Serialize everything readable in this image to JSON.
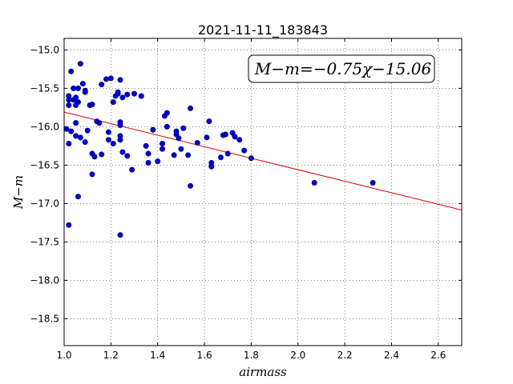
{
  "chart_data": {
    "type": "scatter",
    "title": "2021-11-11_183843",
    "xlabel": "airmass",
    "ylabel": "M−m",
    "xlim": [
      1.0,
      2.7
    ],
    "ylim": [
      -14.85,
      -18.85
    ],
    "y_inverted": true,
    "grid": true,
    "x_ticks": [
      "1.0",
      "1.2",
      "1.4",
      "1.6",
      "1.8",
      "2.0",
      "2.2",
      "2.4",
      "2.6"
    ],
    "y_ticks": [
      "−15.0",
      "−15.5",
      "−16.0",
      "−16.5",
      "−17.0",
      "−17.5",
      "−18.0",
      "−18.5"
    ],
    "annotation": "M−m=−0.75χ−15.06",
    "annotation_position": "top-right",
    "colors": {
      "points": "#0000cc",
      "fit_line": "#dd0000"
    },
    "fit": {
      "slope": -0.75,
      "intercept": -15.06,
      "x_range": [
        1.0,
        2.7
      ]
    },
    "points": [
      [
        1.01,
        -16.03
      ],
      [
        1.02,
        -16.22
      ],
      [
        1.02,
        -15.6
      ],
      [
        1.02,
        -15.65
      ],
      [
        1.02,
        -15.72
      ],
      [
        1.03,
        -15.28
      ],
      [
        1.03,
        -16.06
      ],
      [
        1.04,
        -15.5
      ],
      [
        1.04,
        -15.65
      ],
      [
        1.05,
        -15.72
      ],
      [
        1.05,
        -15.62
      ],
      [
        1.06,
        -15.68
      ],
      [
        1.06,
        -15.5
      ],
      [
        1.05,
        -15.95
      ],
      [
        1.05,
        -16.12
      ],
      [
        1.06,
        -16.91
      ],
      [
        1.07,
        -16.14
      ],
      [
        1.07,
        -15.18
      ],
      [
        1.08,
        -15.44
      ],
      [
        1.09,
        -15.55
      ],
      [
        1.09,
        -15.53
      ],
      [
        1.09,
        -16.2
      ],
      [
        1.1,
        -16.05
      ],
      [
        1.11,
        -15.72
      ],
      [
        1.12,
        -15.71
      ],
      [
        1.12,
        -16.35
      ],
      [
        1.12,
        -16.62
      ],
      [
        1.13,
        -16.39
      ],
      [
        1.14,
        -15.93
      ],
      [
        1.15,
        -15.95
      ],
      [
        1.16,
        -15.45
      ],
      [
        1.16,
        -16.36
      ],
      [
        1.18,
        -15.38
      ],
      [
        1.19,
        -16.07
      ],
      [
        1.19,
        -16.17
      ],
      [
        1.2,
        -15.37
      ],
      [
        1.21,
        -16.22
      ],
      [
        1.21,
        -15.68
      ],
      [
        1.22,
        -15.6
      ],
      [
        1.23,
        -15.57
      ],
      [
        1.23,
        -15.55
      ],
      [
        1.24,
        -15.39
      ],
      [
        1.24,
        -15.94
      ],
      [
        1.24,
        -15.98
      ],
      [
        1.24,
        -16.12
      ],
      [
        1.24,
        -16.17
      ],
      [
        1.25,
        -16.33
      ],
      [
        1.25,
        -15.62
      ],
      [
        1.27,
        -16.38
      ],
      [
        1.27,
        -15.58
      ],
      [
        1.29,
        -16.56
      ],
      [
        1.3,
        -15.57
      ],
      [
        1.33,
        -15.6
      ],
      [
        1.35,
        -16.25
      ],
      [
        1.36,
        -16.47
      ],
      [
        1.36,
        -16.35
      ],
      [
        1.38,
        -16.04
      ],
      [
        1.4,
        -16.45
      ],
      [
        1.42,
        -16.22
      ],
      [
        1.42,
        -16.29
      ],
      [
        1.43,
        -15.86
      ],
      [
        1.44,
        -15.82
      ],
      [
        1.44,
        -16
      ],
      [
        1.47,
        -16.37
      ],
      [
        1.48,
        -16.1
      ],
      [
        1.48,
        -16.06
      ],
      [
        1.49,
        -16.15
      ],
      [
        1.5,
        -16.29
      ],
      [
        1.51,
        -16.02
      ],
      [
        1.53,
        -16.37
      ],
      [
        1.54,
        -15.76
      ],
      [
        1.54,
        -16.77
      ],
      [
        1.57,
        -16.21
      ],
      [
        1.61,
        -16.14
      ],
      [
        1.62,
        -15.93
      ],
      [
        1.63,
        -16.47
      ],
      [
        1.63,
        -16.52
      ],
      [
        1.67,
        -16.4
      ],
      [
        1.68,
        -16.11
      ],
      [
        1.69,
        -16.1
      ],
      [
        1.7,
        -16.35
      ],
      [
        1.72,
        -16.08
      ],
      [
        1.73,
        -16.13
      ],
      [
        1.75,
        -16.17
      ],
      [
        1.77,
        -16.31
      ],
      [
        1.8,
        -16.41
      ],
      [
        2.07,
        -16.73
      ],
      [
        2.32,
        -16.73
      ],
      [
        1.02,
        -17.28
      ],
      [
        1.24,
        -17.41
      ]
    ]
  }
}
